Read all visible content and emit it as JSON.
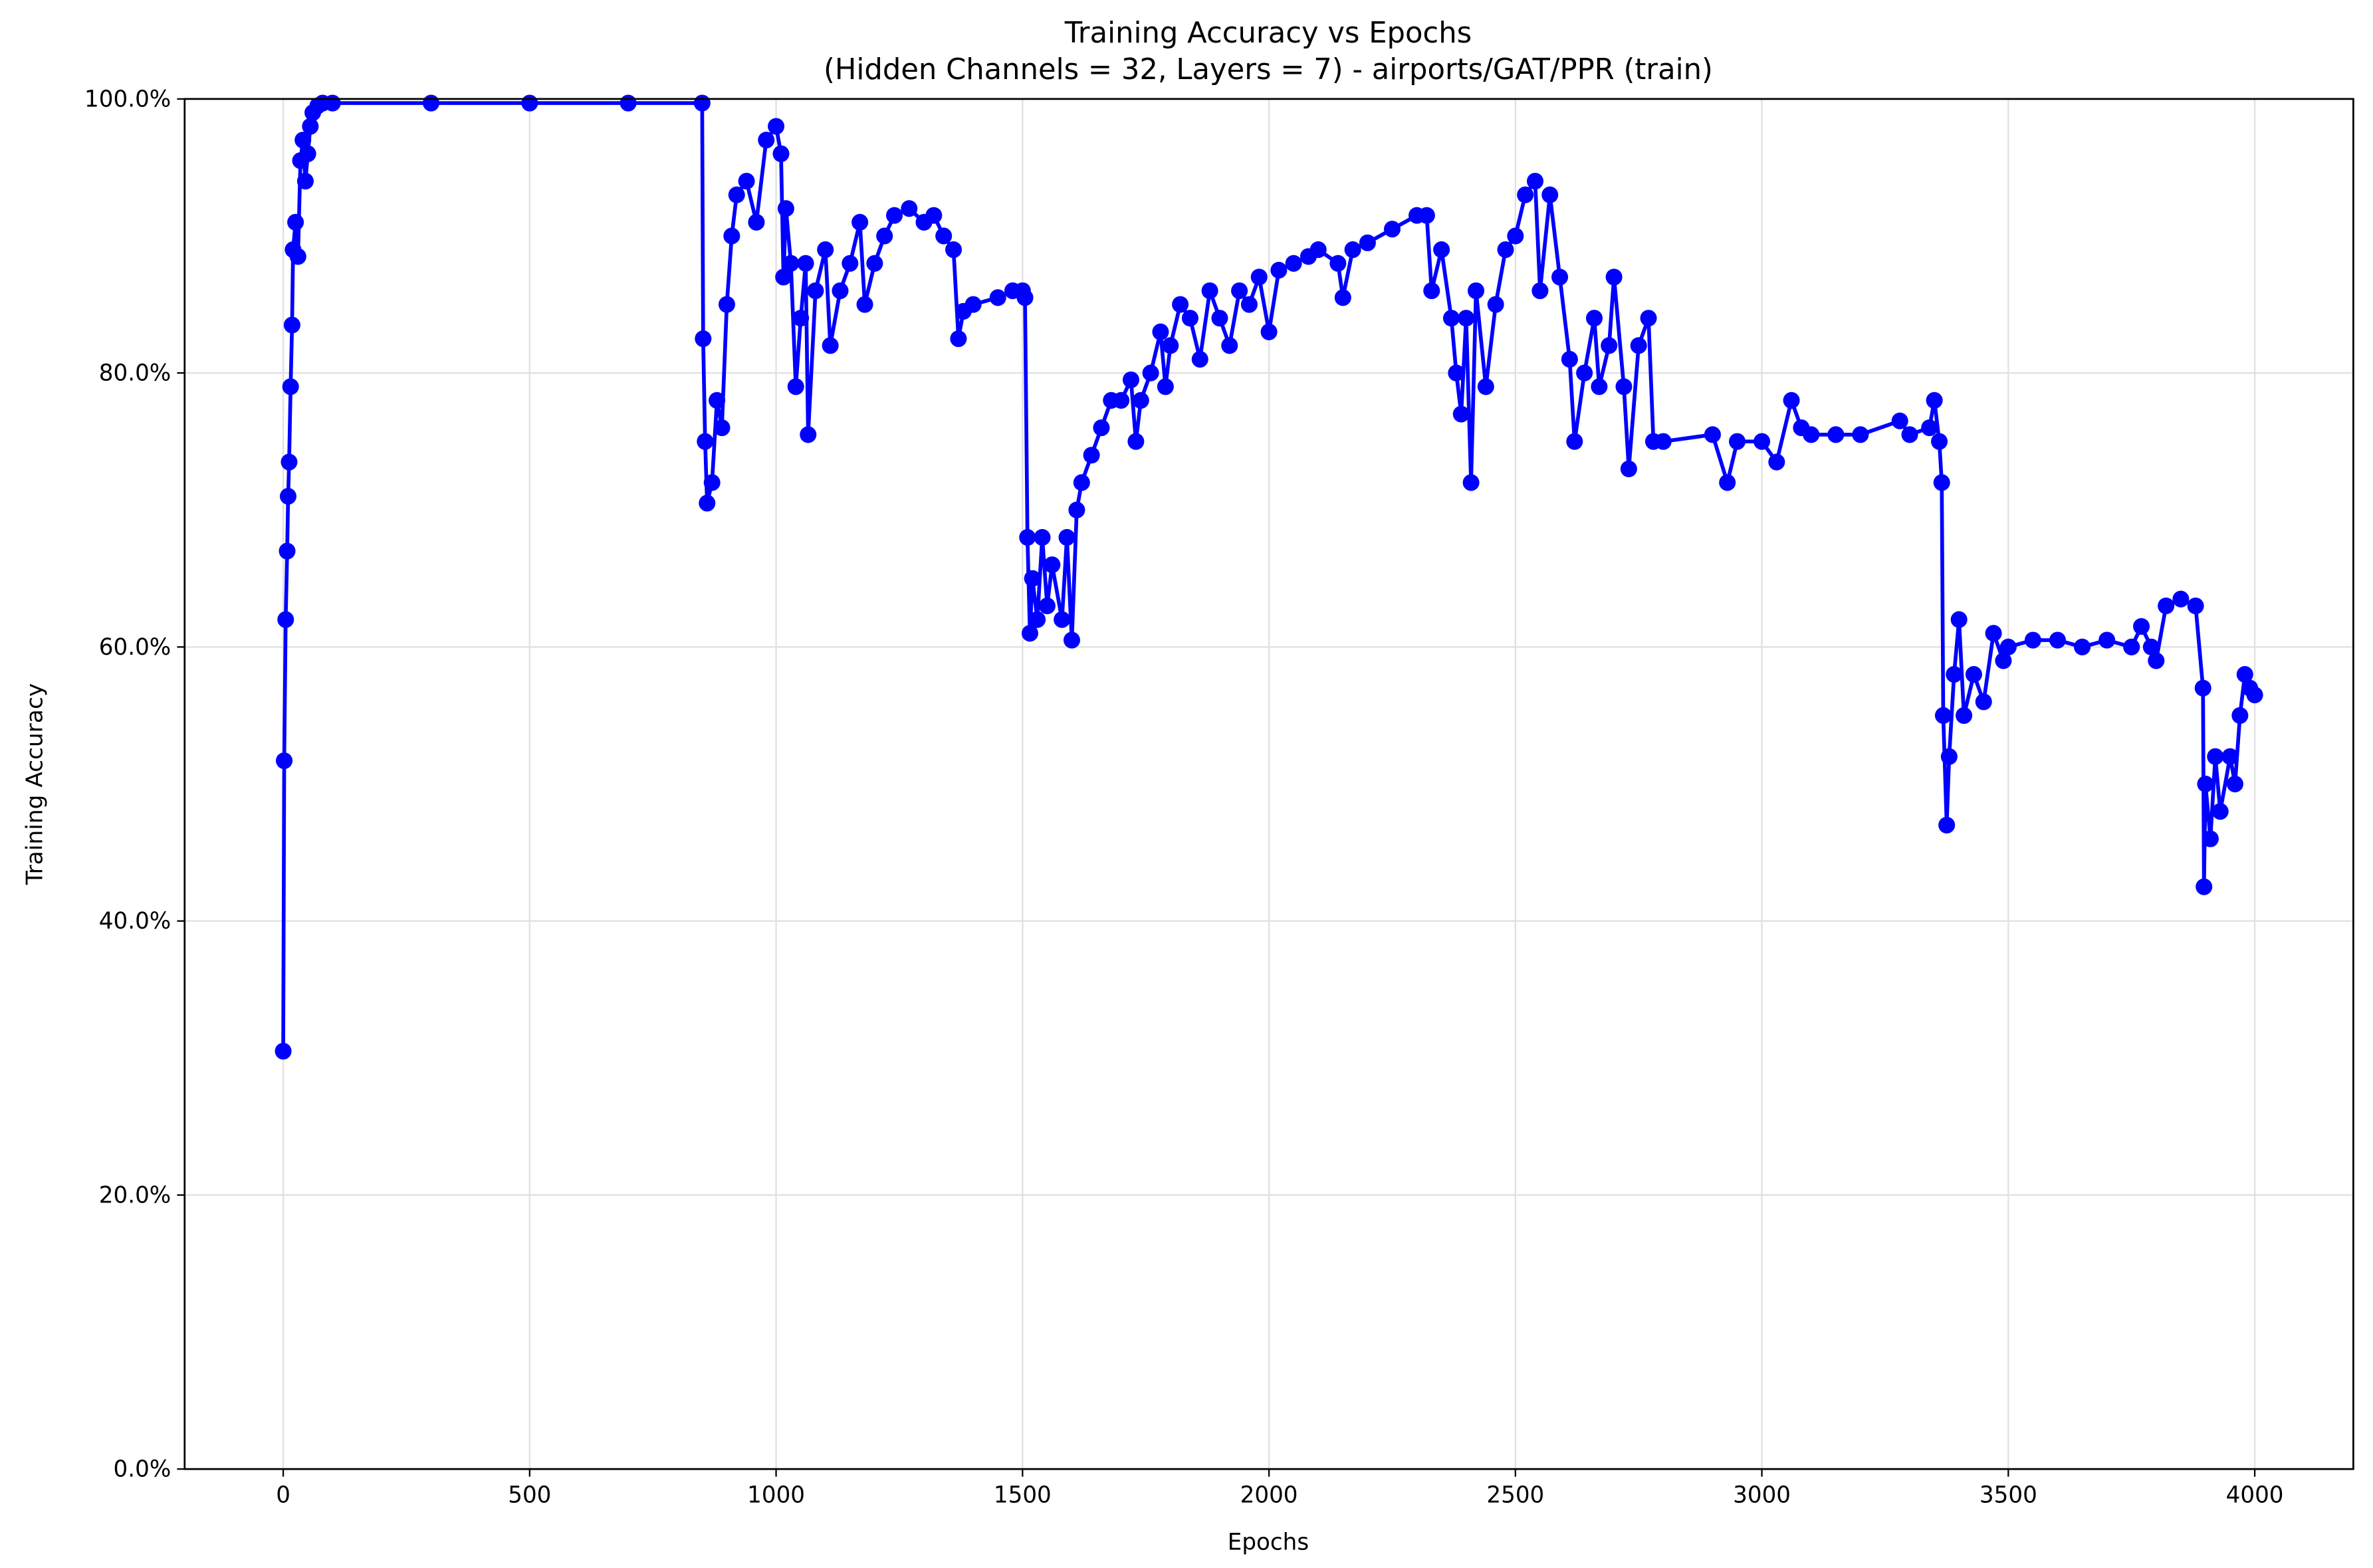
{
  "chart_data": {
    "type": "line",
    "title": "Training Accuracy vs Epochs",
    "subtitle": "(Hidden Channels = 32, Layers = 7) - airports/GAT/PPR (train)",
    "x_label": "Epochs",
    "y_label": "Training Accuracy",
    "xlim": [
      -200,
      4200
    ],
    "ylim": [
      0,
      100
    ],
    "xticks": [
      0,
      500,
      1000,
      1500,
      2000,
      2500,
      3000,
      3500,
      4000
    ],
    "yticks": [
      {
        "value": 0,
        "label": "0.0%"
      },
      {
        "value": 20,
        "label": "20.0%"
      },
      {
        "value": 40,
        "label": "40.0%"
      },
      {
        "value": 60,
        "label": "60.0%"
      },
      {
        "value": 80,
        "label": "80.0%"
      },
      {
        "value": 100,
        "label": "100.0%"
      }
    ],
    "grid": true,
    "series": [
      {
        "color": "#0000ff",
        "x": [
          0,
          2,
          5,
          8,
          10,
          12,
          15,
          18,
          20,
          25,
          30,
          35,
          40,
          45,
          50,
          55,
          60,
          70,
          80,
          100,
          300,
          500,
          700,
          850,
          852,
          856,
          860,
          870,
          880,
          890,
          900,
          910,
          920,
          940,
          960,
          980,
          1000,
          1010,
          1015,
          1020,
          1030,
          1040,
          1050,
          1060,
          1065,
          1080,
          1100,
          1110,
          1130,
          1150,
          1170,
          1180,
          1200,
          1220,
          1240,
          1270,
          1300,
          1320,
          1340,
          1360,
          1370,
          1380,
          1400,
          1450,
          1480,
          1500,
          1505,
          1510,
          1515,
          1520,
          1530,
          1540,
          1550,
          1560,
          1580,
          1590,
          1600,
          1610,
          1620,
          1640,
          1660,
          1680,
          1700,
          1720,
          1730,
          1740,
          1760,
          1780,
          1790,
          1800,
          1820,
          1840,
          1860,
          1880,
          1900,
          1920,
          1940,
          1960,
          1980,
          2000,
          2020,
          2050,
          2080,
          2100,
          2140,
          2150,
          2170,
          2200,
          2250,
          2300,
          2320,
          2330,
          2350,
          2370,
          2380,
          2390,
          2400,
          2410,
          2420,
          2440,
          2460,
          2480,
          2500,
          2520,
          2540,
          2550,
          2570,
          2590,
          2610,
          2620,
          2640,
          2660,
          2670,
          2690,
          2700,
          2720,
          2730,
          2750,
          2770,
          2780,
          2800,
          2900,
          2930,
          2950,
          3000,
          3030,
          3060,
          3080,
          3100,
          3150,
          3200,
          3280,
          3300,
          3340,
          3350,
          3360,
          3365,
          3368,
          3375,
          3380,
          3390,
          3400,
          3410,
          3430,
          3450,
          3470,
          3490,
          3500,
          3550,
          3600,
          3650,
          3700,
          3750,
          3770,
          3790,
          3800,
          3820,
          3850,
          3880,
          3895,
          3897,
          3900,
          3910,
          3920,
          3930,
          3950,
          3960,
          3970,
          3980,
          3990,
          4000
        ],
        "values": [
          30.5,
          51.7,
          62,
          67,
          71,
          73.5,
          79,
          83.5,
          89,
          91,
          88.5,
          95.5,
          97,
          94,
          96,
          98,
          99,
          99.5,
          99.7,
          99.7,
          99.7,
          99.7,
          99.7,
          99.7,
          82.5,
          75,
          70.5,
          72,
          78,
          76,
          85,
          90,
          93,
          94,
          91,
          97,
          98,
          96,
          87,
          92,
          88,
          79,
          84,
          88,
          75.5,
          86,
          89,
          82,
          86,
          88,
          91,
          85,
          88,
          90,
          91.5,
          92,
          91,
          91.5,
          90,
          89,
          82.5,
          84.5,
          85,
          85.5,
          86,
          86,
          85.5,
          68,
          61,
          65,
          62,
          68,
          63,
          66,
          62,
          68,
          60.5,
          70,
          72,
          74,
          76,
          78,
          78,
          79.5,
          75,
          78,
          80,
          83,
          79,
          82,
          85,
          84,
          81,
          86,
          84,
          82,
          86,
          85,
          87,
          83,
          87.5,
          88,
          88.5,
          89,
          88,
          85.5,
          89,
          89.5,
          90.5,
          91.5,
          91.5,
          86,
          89,
          84,
          80,
          77,
          84,
          72,
          86,
          79,
          85,
          89,
          90,
          93,
          94,
          86,
          93,
          87,
          81,
          75,
          80,
          84,
          79,
          82,
          87,
          79,
          73,
          82,
          84,
          75,
          75,
          75.5,
          72,
          75,
          75,
          73.5,
          78,
          76,
          75.5,
          75.5,
          75.5,
          76.5,
          75.5,
          76,
          78,
          75,
          72,
          55,
          47,
          52,
          58,
          62,
          55,
          58,
          56,
          61,
          59,
          60,
          60.5,
          60.5,
          60,
          60.5,
          60,
          61.5,
          60,
          59,
          63,
          63.5,
          63,
          57,
          42.5,
          50,
          46,
          52,
          48,
          52,
          50,
          55,
          58,
          57,
          56.5
        ]
      }
    ]
  }
}
